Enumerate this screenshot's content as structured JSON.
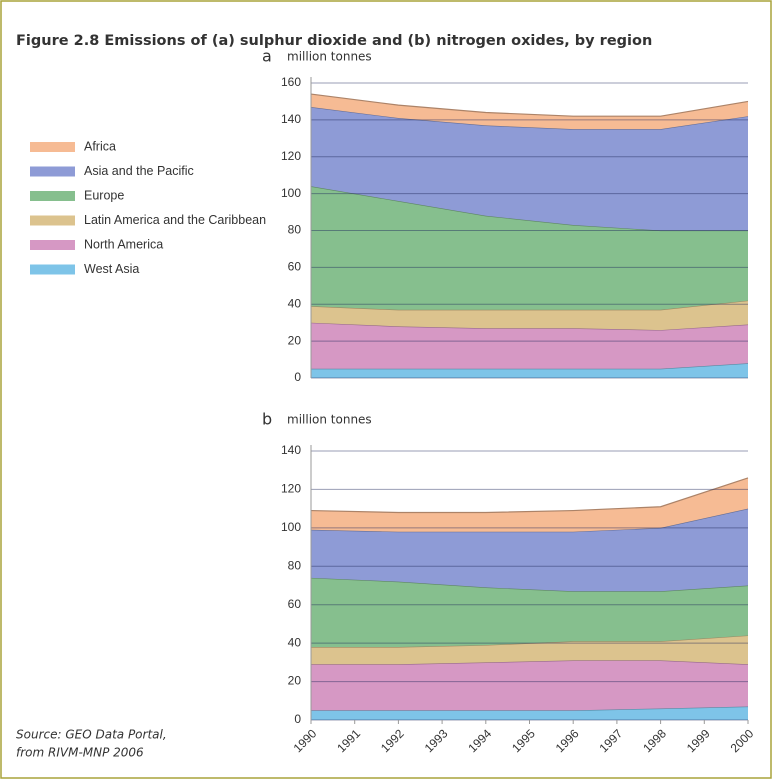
{
  "title": "Figure 2.8 Emissions of (a) sulphur dioxide and (b) nitrogen oxides, by region",
  "source": [
    "Source: GEO Data Portal,",
    "from RIVM-MNP 2006"
  ],
  "chart_data": [
    {
      "type": "area",
      "panel": "a",
      "ylabel": "million tonnes",
      "x": [
        1990,
        1992,
        1994,
        1996,
        1998,
        2000
      ],
      "xlim": [
        1990,
        2000
      ],
      "ylim": [
        0,
        160
      ],
      "yticks": [
        0,
        20,
        40,
        60,
        80,
        100,
        120,
        140,
        160
      ],
      "grid": true,
      "series": [
        {
          "name": "West Asia",
          "color": "#7ec4e8",
          "values": [
            5,
            5,
            5,
            5,
            5,
            8
          ]
        },
        {
          "name": "North America",
          "color": "#d698c4",
          "values": [
            25,
            23,
            22,
            22,
            21,
            21
          ]
        },
        {
          "name": "Latin America and the Caribbean",
          "color": "#dcc38e",
          "values": [
            9,
            9,
            10,
            10,
            11,
            13
          ]
        },
        {
          "name": "Europe",
          "color": "#86bf8e",
          "values": [
            65,
            59,
            51,
            46,
            43,
            38
          ]
        },
        {
          "name": "Asia and the Pacific",
          "color": "#8e9bd6",
          "values": [
            43,
            45,
            49,
            52,
            55,
            62
          ]
        },
        {
          "name": "Africa",
          "color": "#f6bb94",
          "values": [
            7,
            7,
            7,
            7,
            7,
            8
          ]
        }
      ]
    },
    {
      "type": "area",
      "panel": "b",
      "ylabel": "million tonnes",
      "x": [
        1990,
        1992,
        1994,
        1996,
        1998,
        2000
      ],
      "xlim": [
        1990,
        2000
      ],
      "xticks": [
        1990,
        1991,
        1992,
        1993,
        1994,
        1995,
        1996,
        1997,
        1998,
        1999,
        2000
      ],
      "ylim": [
        0,
        140
      ],
      "yticks": [
        0,
        20,
        40,
        60,
        80,
        100,
        120,
        140
      ],
      "grid": true,
      "series": [
        {
          "color": "#7ec4e8",
          "values": [
            5,
            5,
            5,
            5,
            6,
            7
          ]
        },
        {
          "color": "#d698c4",
          "values": [
            24,
            24,
            25,
            26,
            25,
            22
          ]
        },
        {
          "color": "#dcc38e",
          "values": [
            9,
            9,
            9,
            10,
            10,
            15
          ]
        },
        {
          "color": "#86bf8e",
          "values": [
            36,
            34,
            30,
            26,
            26,
            26
          ]
        },
        {
          "color": "#8e9bd6",
          "values": [
            25,
            26,
            29,
            31,
            33,
            40
          ]
        },
        {
          "color": "#f6bb94",
          "values": [
            10,
            10,
            10,
            11,
            11,
            16
          ]
        }
      ]
    }
  ]
}
